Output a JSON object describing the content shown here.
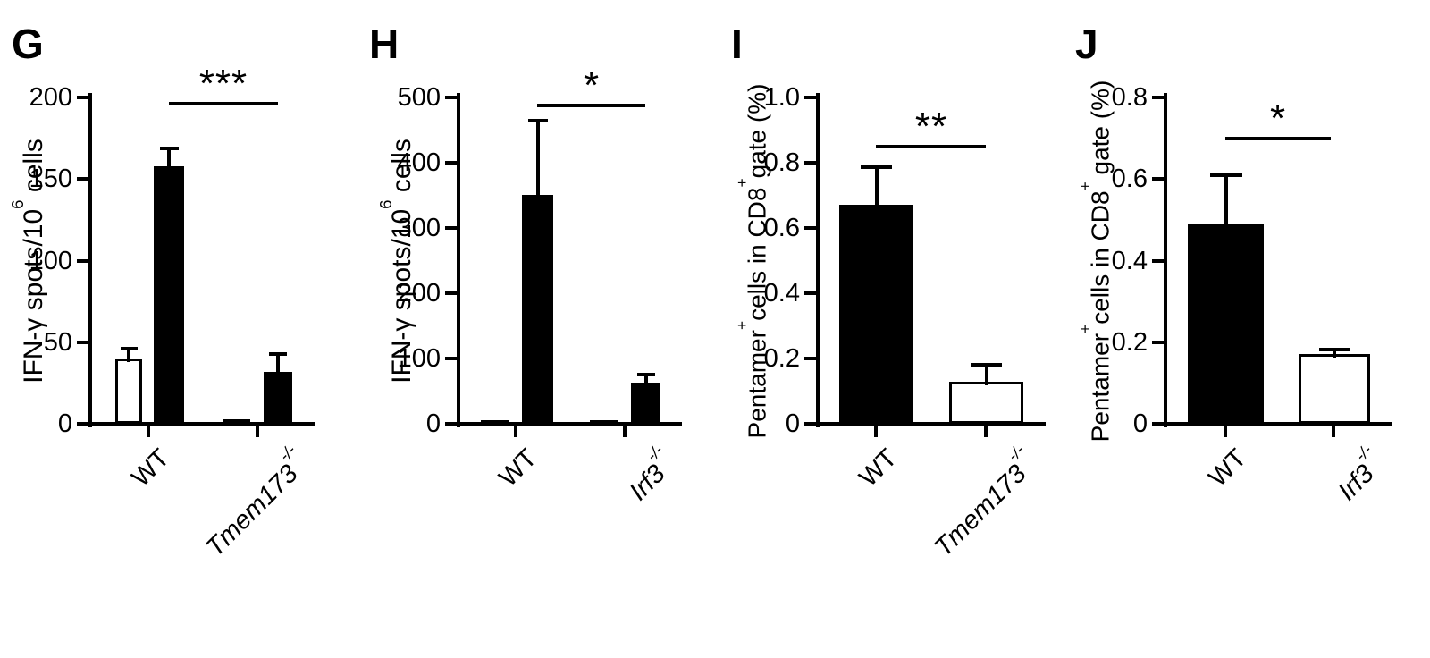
{
  "figure": {
    "type": "four-panel bar chart figure",
    "background_color": "#ffffff",
    "ink_color": "#000000",
    "panel_letters": [
      "G",
      "H",
      "I",
      "J"
    ]
  },
  "chart_data": [
    {
      "type": "bar",
      "panel": "G",
      "ylabel": "IFN-γ spots/10⁶ cells",
      "ylabel_parts": [
        {
          "t": "IFN-γ spots/10"
        },
        {
          "sup": "6"
        },
        {
          "t": " cells"
        }
      ],
      "ylim": [
        0,
        200
      ],
      "yticks": [
        0,
        50,
        100,
        150,
        200
      ],
      "ytick_labels": [
        "0",
        "50",
        "100",
        "150",
        "200"
      ],
      "categories": [
        "WT",
        "Tmem173-/-"
      ],
      "category_labels": [
        {
          "text": "WT",
          "sup": "",
          "italic": false
        },
        {
          "text": "Tmem173",
          "sup": "-/-",
          "italic": true
        }
      ],
      "bars": [
        {
          "category": "WT",
          "fill": "white",
          "value": 40,
          "error": 6
        },
        {
          "category": "WT",
          "fill": "black",
          "value": 158,
          "error": 11
        },
        {
          "category": "Tmem173-/-",
          "fill": "white",
          "value": 3,
          "error": 0
        },
        {
          "category": "Tmem173-/-",
          "fill": "black",
          "value": 32,
          "error": 11
        }
      ],
      "significance": {
        "label": "***",
        "line_value": 196,
        "between": [
          "WT",
          "Tmem173-/-"
        ]
      },
      "legend": "none",
      "grid": false
    },
    {
      "type": "bar",
      "panel": "H",
      "ylabel": "IFN-γ spots/10⁶ cells",
      "ylabel_parts": [
        {
          "t": "IFN-γ spots/10"
        },
        {
          "sup": "6"
        },
        {
          "t": " cells"
        }
      ],
      "ylim": [
        0,
        500
      ],
      "yticks": [
        0,
        100,
        200,
        300,
        400,
        500
      ],
      "ytick_labels": [
        "0",
        "100",
        "200",
        "300",
        "400",
        "500"
      ],
      "categories": [
        "WT",
        "Irf3-/-"
      ],
      "category_labels": [
        {
          "text": "WT",
          "sup": "",
          "italic": false
        },
        {
          "text": "Irf3",
          "sup": "-/-",
          "italic": true
        }
      ],
      "bars": [
        {
          "category": "WT",
          "fill": "white",
          "value": 5,
          "error": 0
        },
        {
          "category": "WT",
          "fill": "black",
          "value": 350,
          "error": 115
        },
        {
          "category": "Irf3-/-",
          "fill": "white",
          "value": 3,
          "error": 0
        },
        {
          "category": "Irf3-/-",
          "fill": "black",
          "value": 63,
          "error": 13
        }
      ],
      "significance": {
        "label": "*",
        "line_value": 488,
        "between": [
          "WT",
          "Irf3-/-"
        ]
      },
      "legend": "none",
      "grid": false
    },
    {
      "type": "bar",
      "panel": "I",
      "ylabel": "Pentamer⁺cells in CD8⁺gate (%)",
      "ylabel_parts": [
        {
          "t": "Pentamer"
        },
        {
          "sup": "+"
        },
        {
          "t": "cells in CD8"
        },
        {
          "sup": "+"
        },
        {
          "t": "gate (%)"
        }
      ],
      "ylim": [
        0,
        1.0
      ],
      "yticks": [
        0,
        0.2,
        0.4,
        0.6,
        0.8,
        1.0
      ],
      "ytick_labels": [
        "0",
        "0.2",
        "0.4",
        "0.6",
        "0.8",
        "1.0"
      ],
      "categories": [
        "WT",
        "Tmem173-/-"
      ],
      "category_labels": [
        {
          "text": "WT",
          "sup": "",
          "italic": false
        },
        {
          "text": "Tmem173",
          "sup": "-/-",
          "italic": true
        }
      ],
      "bars": [
        {
          "category": "WT",
          "fill": "black",
          "value": 0.67,
          "error": 0.115
        },
        {
          "category": "Tmem173-/-",
          "fill": "white",
          "value": 0.13,
          "error": 0.05
        }
      ],
      "significance": {
        "label": "**",
        "line_value": 0.85,
        "between": [
          "WT",
          "Tmem173-/-"
        ]
      },
      "legend": "none",
      "grid": false
    },
    {
      "type": "bar",
      "panel": "J",
      "ylabel": "Pentamer⁺cells in CD8⁺ gate (%)",
      "ylabel_parts": [
        {
          "t": "Pentamer"
        },
        {
          "sup": "+"
        },
        {
          "t": "cells in CD8"
        },
        {
          "sup": "+"
        },
        {
          "t": " gate (%)"
        }
      ],
      "ylim": [
        0,
        0.8
      ],
      "yticks": [
        0,
        0.2,
        0.4,
        0.6,
        0.8
      ],
      "ytick_labels": [
        "0",
        "0.2",
        "0.4",
        "0.6",
        "0.8"
      ],
      "categories": [
        "WT",
        "Irf3-/-"
      ],
      "category_labels": [
        {
          "text": "WT",
          "sup": "",
          "italic": false
        },
        {
          "text": "Irf3",
          "sup": "-/-",
          "italic": true
        }
      ],
      "bars": [
        {
          "category": "WT",
          "fill": "black",
          "value": 0.49,
          "error": 0.12
        },
        {
          "category": "Irf3-/-",
          "fill": "white",
          "value": 0.17,
          "error": 0.012
        }
      ],
      "significance": {
        "label": "*",
        "line_value": 0.7,
        "between": [
          "WT",
          "Irf3-/-"
        ]
      },
      "legend": "none",
      "grid": false
    }
  ]
}
